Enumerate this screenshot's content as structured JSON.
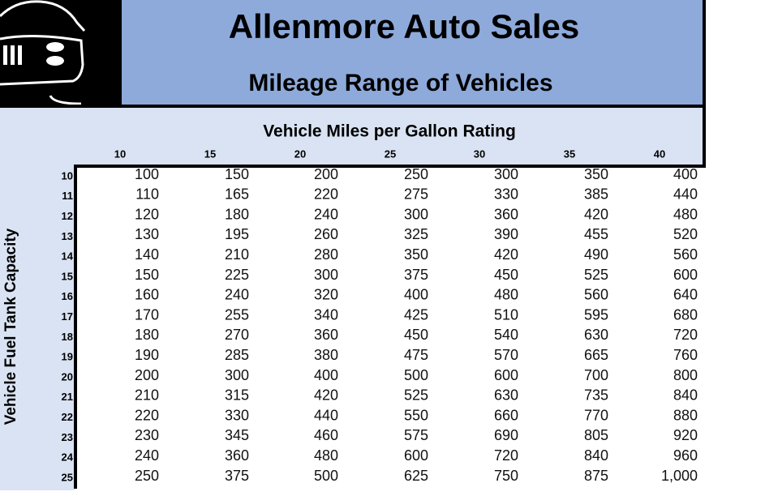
{
  "header": {
    "title": "Allenmore Auto Sales",
    "subtitle": "Mileage Range of Vehicles"
  },
  "table": {
    "column_title": "Vehicle Miles per Gallon Rating",
    "row_title": "Vehicle Fuel Tank Capacity",
    "columns": [
      10,
      15,
      20,
      25,
      30,
      35,
      40
    ],
    "rows": [
      {
        "label": 10,
        "values": [
          100,
          150,
          200,
          250,
          300,
          350,
          400
        ]
      },
      {
        "label": 11,
        "values": [
          110,
          165,
          220,
          275,
          330,
          385,
          440
        ]
      },
      {
        "label": 12,
        "values": [
          120,
          180,
          240,
          300,
          360,
          420,
          480
        ]
      },
      {
        "label": 13,
        "values": [
          130,
          195,
          260,
          325,
          390,
          455,
          520
        ]
      },
      {
        "label": 14,
        "values": [
          140,
          210,
          280,
          350,
          420,
          490,
          560
        ]
      },
      {
        "label": 15,
        "values": [
          150,
          225,
          300,
          375,
          450,
          525,
          600
        ]
      },
      {
        "label": 16,
        "values": [
          160,
          240,
          320,
          400,
          480,
          560,
          640
        ]
      },
      {
        "label": 17,
        "values": [
          170,
          255,
          340,
          425,
          510,
          595,
          680
        ]
      },
      {
        "label": 18,
        "values": [
          180,
          270,
          360,
          450,
          540,
          630,
          720
        ]
      },
      {
        "label": 19,
        "values": [
          190,
          285,
          380,
          475,
          570,
          665,
          760
        ]
      },
      {
        "label": 20,
        "values": [
          200,
          300,
          400,
          500,
          600,
          700,
          800
        ]
      },
      {
        "label": 21,
        "values": [
          210,
          315,
          420,
          525,
          630,
          735,
          840
        ]
      },
      {
        "label": 22,
        "values": [
          220,
          330,
          440,
          550,
          660,
          770,
          880
        ]
      },
      {
        "label": 23,
        "values": [
          230,
          345,
          460,
          575,
          690,
          805,
          920
        ]
      },
      {
        "label": 24,
        "values": [
          240,
          360,
          480,
          600,
          720,
          840,
          960
        ]
      },
      {
        "label": 25,
        "values": [
          250,
          375,
          500,
          625,
          750,
          875,
          "1,000"
        ]
      }
    ]
  }
}
